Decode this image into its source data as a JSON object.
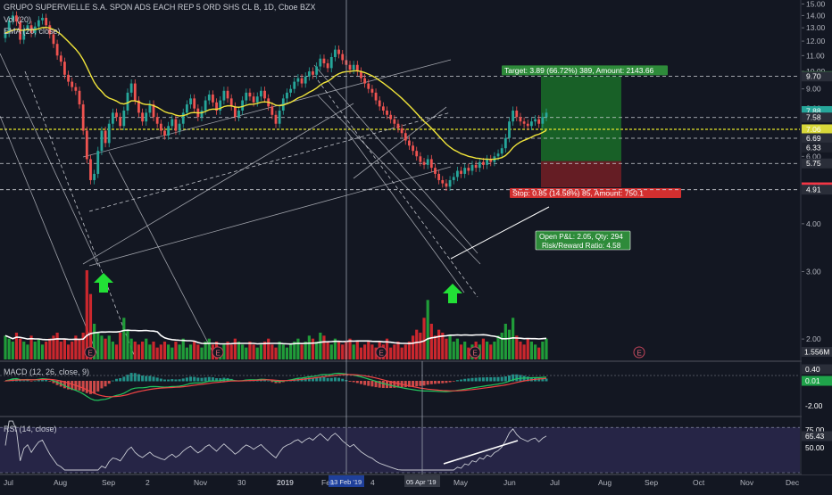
{
  "chart_data": {
    "type": "candlestick",
    "title": "GRUPO SUPERVIELLE S.A. SPON ADS EACH REP 5 ORD SHS CL B, 1D, Cboe BZX",
    "indicators": {
      "volume": "Vol (20)",
      "ema": "EMA (20, close)",
      "macd": "MACD (12, 26, close, 9)",
      "rsi": "RSI (14, close)"
    },
    "price_axis": {
      "scale": "log",
      "ticks": [
        15.0,
        14.0,
        13.0,
        12.0,
        11.0,
        10.0,
        9.0,
        8.0,
        7.0,
        6.0,
        5.0,
        4.0,
        3.0,
        2.0
      ],
      "tick_labels": [
        "15.00",
        "14.00",
        "13.00",
        "12.00",
        "11.00",
        "10.00",
        "9.00",
        "8.00",
        "7.00",
        "6.00",
        "5.00",
        "4.00",
        "3.00",
        "2.00"
      ],
      "range": [
        1.75,
        15.2
      ]
    },
    "price_labels": [
      {
        "value": 9.72,
        "text": "9.72",
        "color": "#4caf50"
      },
      {
        "value": 9.7,
        "text": "9.70",
        "color": "#2a2e39"
      },
      {
        "value": 7.88,
        "text": "7.88",
        "color": "#26a69a"
      },
      {
        "value": 7.58,
        "text": "7.58",
        "color": "#2a2e39"
      },
      {
        "value": 7.06,
        "text": "7.06",
        "color": "#d8d83a"
      },
      {
        "value": 6.69,
        "text": "6.69",
        "color": "#2a2e39"
      },
      {
        "value": 6.33,
        "text": "6.33",
        "color": "#1e222d"
      },
      {
        "value": 5.75,
        "text": "5.75",
        "color": "#2a2e39"
      },
      {
        "value": 4.98,
        "text": "4.98",
        "color": "#f23645"
      },
      {
        "value": 4.91,
        "text": "4.91",
        "color": "#2a2e39"
      }
    ],
    "volume_label": "1.556M",
    "macd_axis": {
      "tick_labels": [
        "0.40",
        "0.01",
        "-2.00"
      ]
    },
    "rsi_axis": {
      "tick_labels": [
        "75.00",
        "65.43",
        "50.00"
      ],
      "range": [
        25,
        85
      ]
    },
    "x_axis": {
      "tick_labels": [
        "Jul",
        "Aug",
        "Sep",
        "2",
        "Nov",
        "30",
        "2019",
        "Feb",
        "4",
        "Apr",
        "May",
        "Jun",
        "Jul",
        "Aug",
        "Sep",
        "Oct",
        "Nov",
        "Dec"
      ]
    },
    "crosshair_labels": [
      "13 Feb '19",
      "05 Apr '19"
    ],
    "position": {
      "target_label": "Target: 3.89 (66.72%) 389, Amount: 2143.66",
      "stop_label": "Stop: 0.85 (14.58%) 85, Amount: 750.1",
      "pnl_line1": "Open P&L: 2.05, Qty: 294",
      "pnl_line2": "Risk/Reward Ratio: 4.58",
      "entry": 5.83,
      "target": 9.72,
      "stop": 4.98
    },
    "earnings_marker": "E",
    "levels": [
      9.72,
      7.58,
      7.06,
      6.69,
      5.75,
      4.91
    ],
    "close_series": [
      12.6,
      13.6,
      14.0,
      13.5,
      12.1,
      12.9,
      13.2,
      12.6,
      13.1,
      13.6,
      13.8,
      13.2,
      12.5,
      11.8,
      11.0,
      10.6,
      9.8,
      9.4,
      9.1,
      8.9,
      8.2,
      7.0,
      5.9,
      5.2,
      5.4,
      6.2,
      7.0,
      6.5,
      7.3,
      7.8,
      7.6,
      7.2,
      7.9,
      8.8,
      9.3,
      8.4,
      7.8,
      7.4,
      7.8,
      8.2,
      7.6,
      7.3,
      7.0,
      6.8,
      7.2,
      7.5,
      7.0,
      7.3,
      7.8,
      8.2,
      8.5,
      8.0,
      7.6,
      7.9,
      8.4,
      8.7,
      8.3,
      7.9,
      8.4,
      8.9,
      8.5,
      8.1,
      7.6,
      7.9,
      8.4,
      8.8,
      8.6,
      8.3,
      8.6,
      8.9,
      8.5,
      8.1,
      7.7,
      7.3,
      7.9,
      8.5,
      8.8,
      9.0,
      9.4,
      9.6,
      9.3,
      9.7,
      10.0,
      9.8,
      10.3,
      10.8,
      10.5,
      10.2,
      10.9,
      11.4,
      11.1,
      10.7,
      10.4,
      10.1,
      10.4,
      10.0,
      9.6,
      9.3,
      9.0,
      8.8,
      8.4,
      8.1,
      7.9,
      7.7,
      7.5,
      7.3,
      7.1,
      6.9,
      6.6,
      6.4,
      6.2,
      6.0,
      5.8,
      5.7,
      5.9,
      5.6,
      5.4,
      5.2,
      5.1,
      5.0,
      5.2,
      5.3,
      5.5,
      5.4,
      5.6,
      5.5,
      5.7,
      5.6,
      5.8,
      5.7,
      5.9,
      5.8,
      6.0,
      6.1,
      6.3,
      6.7,
      7.4,
      7.9,
      7.6,
      7.4,
      7.3,
      7.2,
      7.4,
      7.5,
      7.3,
      7.6,
      7.8
    ],
    "volume_series": [
      8,
      7,
      6,
      9,
      7,
      6,
      5,
      8,
      6,
      7,
      5,
      6,
      7,
      8,
      9,
      6,
      7,
      5,
      6,
      8,
      7,
      9,
      30,
      22,
      12,
      9,
      8,
      7,
      8,
      6,
      5,
      9,
      14,
      10,
      7,
      6,
      5,
      6,
      7,
      5,
      6,
      4,
      5,
      6,
      5,
      4,
      6,
      5,
      7,
      4,
      5,
      6,
      5,
      4,
      6,
      7,
      5,
      6,
      4,
      5,
      6,
      5,
      7,
      6,
      5,
      4,
      6,
      5,
      4,
      5,
      6,
      7,
      5,
      4,
      6,
      5,
      4,
      5,
      6,
      7,
      5,
      6,
      8,
      7,
      6,
      9,
      8,
      6,
      5,
      7,
      6,
      5,
      6,
      7,
      5,
      6,
      4,
      5,
      6,
      5,
      4,
      6,
      5,
      7,
      4,
      5,
      6,
      4,
      5,
      6,
      8,
      10,
      9,
      14,
      20,
      12,
      8,
      10,
      9,
      7,
      8,
      6,
      7,
      5,
      6,
      4,
      5,
      6,
      5,
      7,
      6,
      5,
      6,
      8,
      9,
      12,
      10,
      14,
      8,
      6,
      5,
      7,
      6,
      5,
      4,
      6,
      7
    ]
  }
}
